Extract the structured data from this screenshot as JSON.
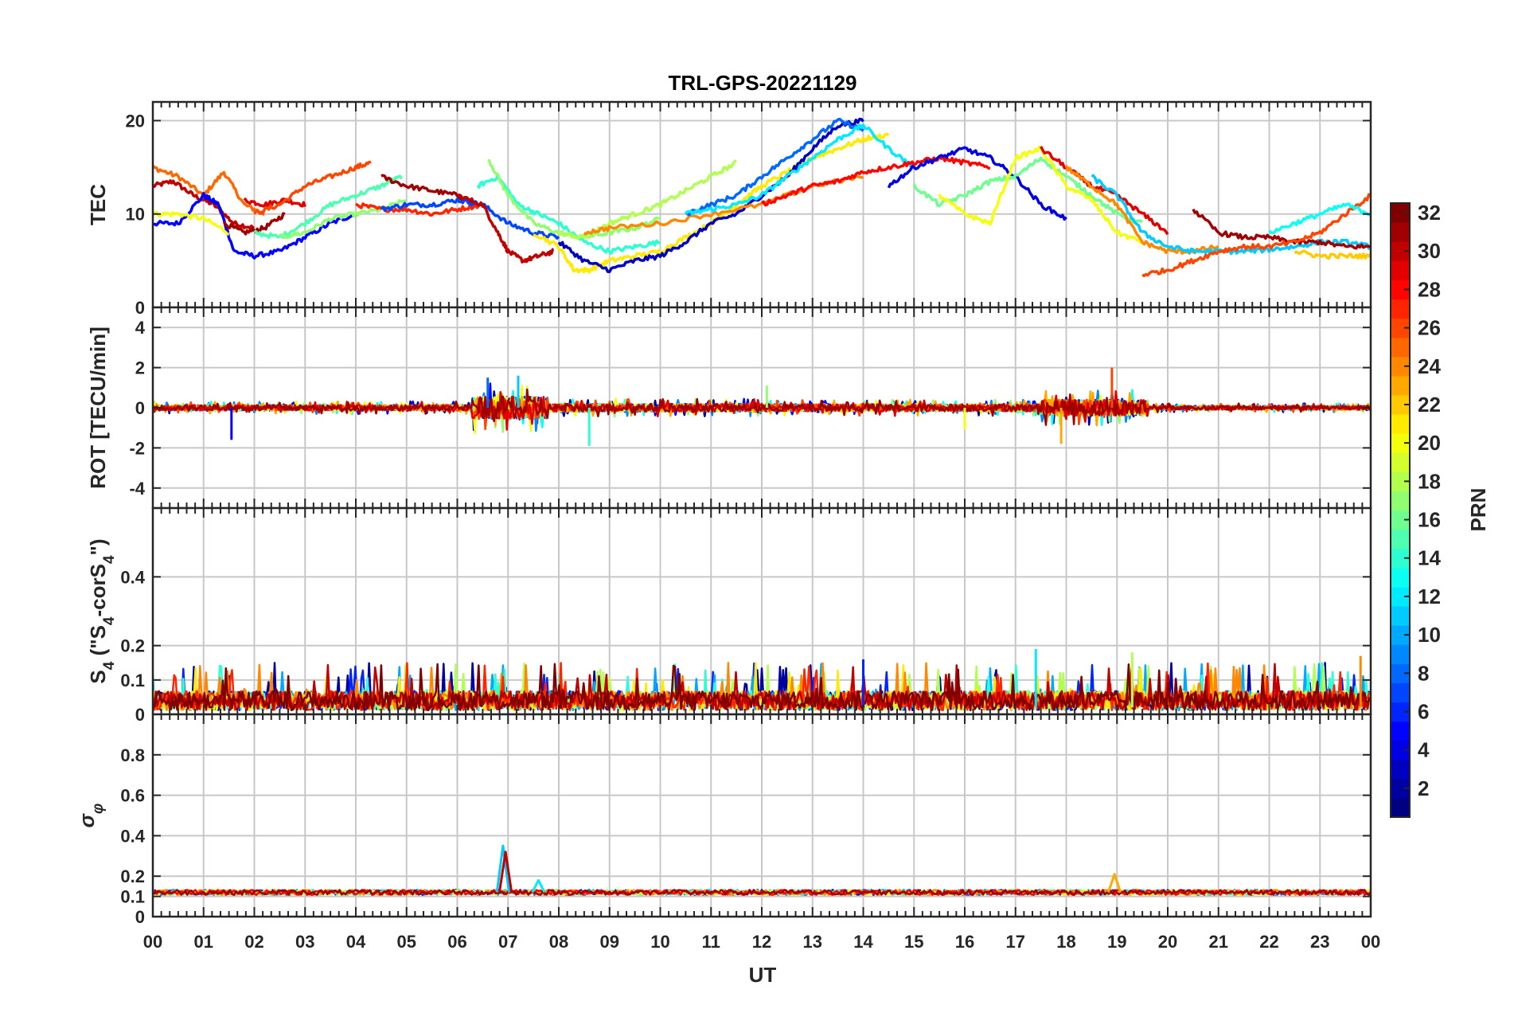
{
  "chart_data": {
    "type": "line",
    "title": "TRL-GPS-20221129",
    "xlabel": "UT",
    "x_ticks": [
      "00",
      "01",
      "02",
      "03",
      "04",
      "05",
      "06",
      "07",
      "08",
      "09",
      "10",
      "11",
      "12",
      "13",
      "14",
      "15",
      "16",
      "17",
      "18",
      "19",
      "20",
      "21",
      "22",
      "23",
      "00"
    ],
    "x_range_hours": [
      0,
      24
    ],
    "grid": true,
    "colorbar": {
      "label": "PRN",
      "range": [
        1,
        32
      ],
      "ticks": [
        "2",
        "4",
        "6",
        "8",
        "10",
        "12",
        "14",
        "16",
        "18",
        "20",
        "22",
        "24",
        "26",
        "28",
        "30",
        "32"
      ],
      "colormap": "jet",
      "placement": "right"
    },
    "panels": [
      {
        "id": "tec",
        "ylabel": "TEC",
        "ylim": [
          0,
          22
        ],
        "y_ticks": [
          "0",
          "10",
          "20"
        ],
        "y_tick_values": [
          0,
          10,
          20
        ],
        "series": [
          {
            "prn": 30,
            "x": [
              0,
              0.4,
              0.8,
              1.2,
              1.6,
              2.0
            ],
            "y": [
              13,
              13.5,
              12,
              11,
              9,
              8.5
            ]
          },
          {
            "prn": 25,
            "x": [
              0,
              0.5,
              1.0,
              1.4,
              1.8,
              2.2
            ],
            "y": [
              15,
              14,
              12,
              14.5,
              11,
              10
            ]
          },
          {
            "prn": 5,
            "x": [
              0,
              0.5,
              1.0,
              1.3,
              1.6,
              2.0,
              2.5,
              3.0,
              3.5,
              4.0
            ],
            "y": [
              9,
              9,
              12,
              11,
              6,
              5.5,
              6,
              7.5,
              9,
              10
            ]
          },
          {
            "prn": 20,
            "x": [
              0,
              0.5,
              1.0,
              1.5
            ],
            "y": [
              10,
              10,
              9.5,
              8
            ]
          },
          {
            "prn": 31,
            "x": [
              1.4,
              1.8,
              2.2,
              2.6
            ],
            "y": [
              9,
              8,
              8.5,
              10
            ]
          },
          {
            "prn": 29,
            "x": [
              1.8,
              2.2,
              2.6,
              3.0
            ],
            "y": [
              11.5,
              11,
              11.5,
              11
            ]
          },
          {
            "prn": 26,
            "x": [
              2.0,
              2.5,
              3.0,
              3.5,
              4.0,
              4.3
            ],
            "y": [
              10,
              11,
              13,
              14,
              15,
              15.5
            ]
          },
          {
            "prn": 15,
            "x": [
              2.0,
              2.5,
              3.0,
              3.5,
              4.0,
              4.5,
              4.9
            ],
            "y": [
              8,
              7.5,
              9,
              11,
              12,
              13,
              14
            ]
          },
          {
            "prn": 17,
            "x": [
              2.5,
              3.0,
              3.5,
              4.0,
              4.5,
              5.0
            ],
            "y": [
              7.5,
              8,
              9.5,
              10,
              10.5,
              11.5
            ]
          },
          {
            "prn": 31,
            "x": [
              4.5,
              5.0,
              5.5,
              6.0,
              6.4
            ],
            "y": [
              14,
              13,
              12.5,
              12,
              11
            ]
          },
          {
            "prn": 27,
            "x": [
              4.0,
              4.5,
              5.0,
              5.5,
              6.0,
              6.5
            ],
            "y": [
              11,
              10.5,
              10.5,
              10,
              10.5,
              11
            ]
          },
          {
            "prn": 7,
            "x": [
              4.5,
              5.0,
              5.5,
              6.0,
              6.5,
              7.0,
              7.5,
              8.0
            ],
            "y": [
              10.5,
              11,
              11,
              11.5,
              11,
              9,
              8,
              7.5
            ]
          },
          {
            "prn": 30,
            "x": [
              6.0,
              6.5,
              6.8,
              7.0,
              7.3,
              7.6,
              7.9
            ],
            "y": [
              12,
              11,
              8,
              6,
              5,
              5.5,
              6
            ]
          },
          {
            "prn": 14,
            "x": [
              6.4,
              6.8,
              7.2,
              7.6,
              8.0,
              8.5,
              9.0,
              9.5,
              10.0
            ],
            "y": [
              13,
              14,
              11,
              10,
              9,
              7,
              6,
              6.5,
              7
            ]
          },
          {
            "prn": 17,
            "x": [
              6.6,
              7.0,
              7.5,
              8.0,
              8.5,
              9.0,
              9.5,
              10.0
            ],
            "y": [
              16,
              12,
              9,
              8,
              7.5,
              8,
              8.5,
              9.5
            ]
          },
          {
            "prn": 21,
            "x": [
              7.5,
              8.0,
              8.3,
              8.6,
              9.0,
              9.5,
              10.0,
              10.5,
              11.0,
              11.5,
              12.0,
              12.5,
              13.0,
              13.5,
              14.0,
              14.5
            ],
            "y": [
              8,
              6.5,
              4,
              4,
              5,
              5.5,
              6,
              7.5,
              9,
              11,
              13,
              14.5,
              16,
              17,
              18,
              18.5
            ]
          },
          {
            "prn": 3,
            "x": [
              8.0,
              8.5,
              9.0,
              9.5,
              10.0,
              10.5,
              11.0,
              11.5,
              12.0,
              12.5,
              13.0,
              13.5,
              14.0
            ],
            "y": [
              7,
              5,
              4,
              5,
              5.5,
              7,
              9,
              10,
              12,
              14,
              17,
              19.5,
              20
            ]
          },
          {
            "prn": 18,
            "x": [
              8.0,
              8.5,
              9.0,
              9.5,
              10.0,
              10.5,
              11.0,
              11.5
            ],
            "y": [
              8,
              7.5,
              9,
              10,
              11,
              12.5,
              14,
              15.5
            ]
          },
          {
            "prn": 24,
            "x": [
              8.5,
              9.0,
              10.0,
              11.0,
              12.0,
              13.0,
              14.0
            ],
            "y": [
              8,
              8.5,
              9,
              10,
              11,
              13,
              14
            ]
          },
          {
            "prn": 8,
            "x": [
              10.5,
              11.0,
              11.5,
              12.0,
              12.5,
              13.0,
              13.5,
              14.0
            ],
            "y": [
              10,
              11,
              12,
              14,
              16,
              18,
              20,
              19
            ]
          },
          {
            "prn": 12,
            "x": [
              10.5,
              11.0,
              11.5,
              12.0,
              12.5,
              13.0,
              13.5,
              14.0,
              14.5,
              15.0
            ],
            "y": [
              10,
              10.5,
              11,
              12,
              14,
              16,
              18,
              19.5,
              17,
              15
            ]
          },
          {
            "prn": 28,
            "x": [
              12.0,
              12.5,
              13.0,
              13.5,
              14.0,
              14.5,
              15.0,
              15.5,
              16.0,
              16.5
            ],
            "y": [
              11,
              12,
              13,
              13.5,
              14.5,
              15,
              15.5,
              16,
              15.5,
              15
            ]
          },
          {
            "prn": 4,
            "x": [
              14.5,
              15.0,
              15.5,
              16.0,
              16.5,
              17.0,
              17.5,
              18.0
            ],
            "y": [
              13,
              15,
              16,
              17,
              16,
              14,
              11,
              9.5
            ]
          },
          {
            "prn": 16,
            "x": [
              15.0,
              15.5,
              16.0,
              16.5,
              17.0,
              17.5,
              18.0,
              18.5,
              19.0,
              19.5
            ],
            "y": [
              13,
              11,
              12,
              13.5,
              14,
              16,
              14,
              12,
              10,
              9
            ]
          },
          {
            "prn": 20,
            "x": [
              15.5,
              16.0,
              16.5,
              17.0,
              17.5,
              18.0,
              18.5,
              19.0,
              19.5
            ],
            "y": [
              12,
              10,
              9,
              16,
              17,
              13,
              11.5,
              8,
              7
            ]
          },
          {
            "prn": 29,
            "x": [
              17.5,
              18.0,
              18.5,
              19.0,
              19.5,
              20.0
            ],
            "y": [
              17,
              15,
              13,
              12,
              10,
              8
            ]
          },
          {
            "prn": 24,
            "x": [
              18.0,
              18.5,
              19.0,
              19.5,
              20.0,
              20.5,
              21.0
            ],
            "y": [
              15,
              13,
              11,
              7,
              6,
              6,
              6.5
            ]
          },
          {
            "prn": 11,
            "x": [
              18.5,
              19.0,
              19.5,
              20.0,
              20.5,
              21.0,
              21.5,
              22.0,
              22.5,
              23.0,
              23.5,
              24.0
            ],
            "y": [
              14,
              12,
              8,
              6.5,
              6,
              6,
              6,
              6.2,
              6.5,
              7,
              7,
              6.5
            ]
          },
          {
            "prn": 31,
            "x": [
              20.5,
              21.0,
              21.5,
              22.0,
              22.5,
              23.0,
              23.5,
              24.0
            ],
            "y": [
              10.5,
              8,
              7.5,
              7.5,
              7,
              7,
              6.5,
              6.5
            ]
          },
          {
            "prn": 26,
            "x": [
              19.5,
              20.0,
              20.5,
              21.0,
              21.5,
              22.0,
              22.5,
              23.0,
              23.5,
              24.0
            ],
            "y": [
              3.5,
              4,
              5,
              6,
              6.5,
              6.5,
              7,
              8,
              10,
              12
            ]
          },
          {
            "prn": 13,
            "x": [
              22.0,
              22.5,
              23.0,
              23.5,
              24.0
            ],
            "y": [
              8,
              9,
              10,
              11,
              10
            ]
          },
          {
            "prn": 22,
            "x": [
              22.5,
              23.0,
              23.5,
              24.0
            ],
            "y": [
              6,
              5.5,
              5.5,
              5.5
            ]
          }
        ]
      },
      {
        "id": "rot",
        "ylabel": "ROT [TECU/min]",
        "ylim": [
          -5,
          5
        ],
        "y_ticks": [
          "-4",
          "-2",
          "0",
          "2",
          "4"
        ],
        "y_tick_values": [
          -4,
          -2,
          0,
          2,
          4
        ],
        "noise_bands": [
          {
            "x": [
              0,
              6.3
            ],
            "amp": 0.35
          },
          {
            "x": [
              6.3,
              7.8
            ],
            "amp": 1.4
          },
          {
            "x": [
              7.8,
              12.0
            ],
            "amp": 0.5
          },
          {
            "x": [
              12.0,
              17.5
            ],
            "amp": 0.45
          },
          {
            "x": [
              17.5,
              19.6
            ],
            "amp": 1.0
          },
          {
            "x": [
              19.6,
              24.0
            ],
            "amp": 0.25
          }
        ],
        "spikes": [
          {
            "x": 1.55,
            "y": -1.6
          },
          {
            "x": 6.6,
            "y": 1.5
          },
          {
            "x": 7.2,
            "y": 1.6
          },
          {
            "x": 8.6,
            "y": -1.9
          },
          {
            "x": 12.1,
            "y": 1.1
          },
          {
            "x": 16.0,
            "y": -1.1
          },
          {
            "x": 17.9,
            "y": -1.8
          },
          {
            "x": 18.9,
            "y": 2.0
          }
        ]
      },
      {
        "id": "s4",
        "ylabel": "S4 (\"S4-corS4\")",
        "ylabel_main": "S",
        "ylabel_sub": "4",
        "ylabel_rest": " (\"S",
        "ylabel_sub2": "4",
        "ylabel_rest2": "-corS",
        "ylabel_sub3": "4",
        "ylabel_end": "\")",
        "ylim": [
          0,
          0.6
        ],
        "y_ticks": [
          "0",
          "0.1",
          "0.2",
          "0.4"
        ],
        "y_tick_values": [
          0,
          0.1,
          0.2,
          0.4
        ],
        "noise_mean": 0.04,
        "noise_peak": 0.15,
        "spikes": [
          {
            "x": 14.0,
            "y": 0.16
          },
          {
            "x": 17.4,
            "y": 0.19
          },
          {
            "x": 19.3,
            "y": 0.18
          },
          {
            "x": 23.8,
            "y": 0.17
          }
        ]
      },
      {
        "id": "sigma",
        "ylabel": "σφ",
        "ylabel_main": "σ",
        "ylabel_sub": "φ",
        "ylim": [
          0,
          1
        ],
        "y_ticks": [
          "0",
          "0.1",
          "0.2",
          "0.4",
          "0.6",
          "0.8"
        ],
        "y_tick_values": [
          0,
          0.1,
          0.2,
          0.4,
          0.6,
          0.8
        ],
        "baseline": 0.12,
        "peaks": [
          {
            "x": 6.9,
            "y": 0.35
          },
          {
            "x": 6.95,
            "y": 0.32
          },
          {
            "x": 7.6,
            "y": 0.18
          },
          {
            "x": 18.95,
            "y": 0.21
          }
        ]
      }
    ]
  }
}
